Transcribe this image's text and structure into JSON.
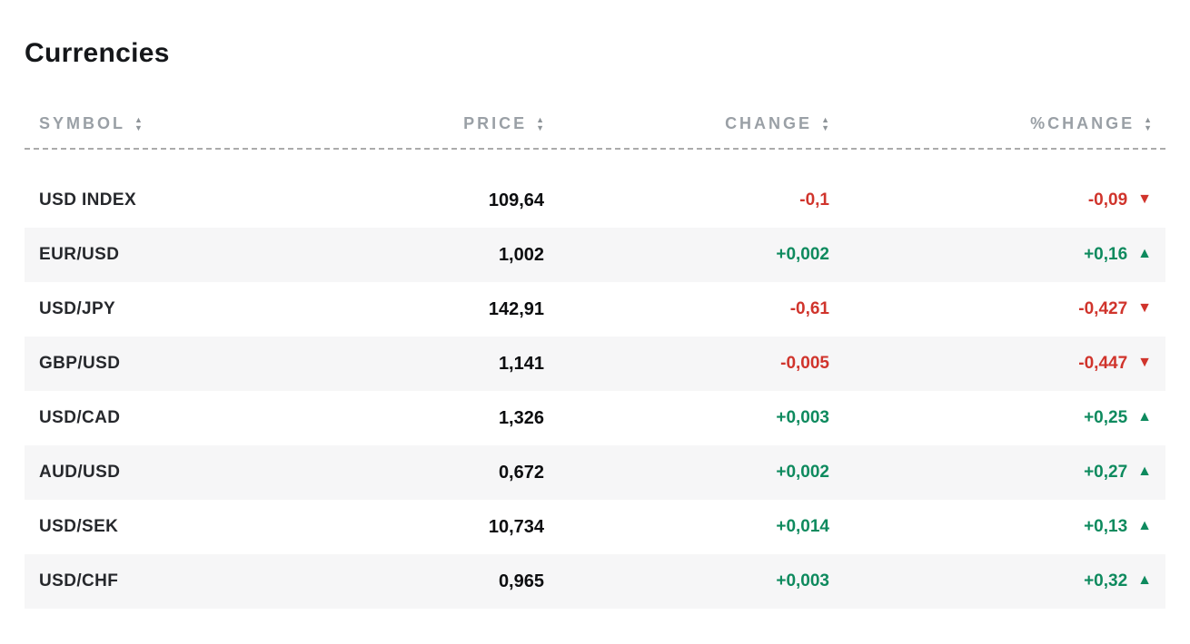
{
  "page": {
    "title": "Currencies"
  },
  "table": {
    "headers": [
      {
        "label": "SYMBOL"
      },
      {
        "label": "PRICE"
      },
      {
        "label": "CHANGE"
      },
      {
        "label": "%CHANGE"
      }
    ]
  },
  "icons": {
    "sort_up": "▲",
    "sort_down": "▼",
    "trend_up": "▲",
    "trend_down": "▼"
  },
  "colors": {
    "up": "#0e8a5e",
    "down": "#d0342c",
    "header_text": "#9aa0a6",
    "row_alt_bg": "#f6f6f7",
    "title_text": "#15171a"
  },
  "chart_data": {
    "type": "table",
    "title": "Currencies",
    "columns": [
      "SYMBOL",
      "PRICE",
      "CHANGE",
      "%CHANGE"
    ],
    "rows": [
      {
        "symbol": "USD INDEX",
        "price": "109,64",
        "change": "-0,1",
        "pct_change": "-0,09",
        "direction": "down",
        "arrow": "▼"
      },
      {
        "symbol": "EUR/USD",
        "price": "1,002",
        "change": "+0,002",
        "pct_change": "+0,16",
        "direction": "up",
        "arrow": "▲"
      },
      {
        "symbol": "USD/JPY",
        "price": "142,91",
        "change": "-0,61",
        "pct_change": "-0,427",
        "direction": "down",
        "arrow": "▼"
      },
      {
        "symbol": "GBP/USD",
        "price": "1,141",
        "change": "-0,005",
        "pct_change": "-0,447",
        "direction": "down",
        "arrow": "▼"
      },
      {
        "symbol": "USD/CAD",
        "price": "1,326",
        "change": "+0,003",
        "pct_change": "+0,25",
        "direction": "up",
        "arrow": "▲"
      },
      {
        "symbol": "AUD/USD",
        "price": "0,672",
        "change": "+0,002",
        "pct_change": "+0,27",
        "direction": "up",
        "arrow": "▲"
      },
      {
        "symbol": "USD/SEK",
        "price": "10,734",
        "change": "+0,014",
        "pct_change": "+0,13",
        "direction": "up",
        "arrow": "▲"
      },
      {
        "symbol": "USD/CHF",
        "price": "0,965",
        "change": "+0,003",
        "pct_change": "+0,32",
        "direction": "up",
        "arrow": "▲"
      }
    ]
  }
}
